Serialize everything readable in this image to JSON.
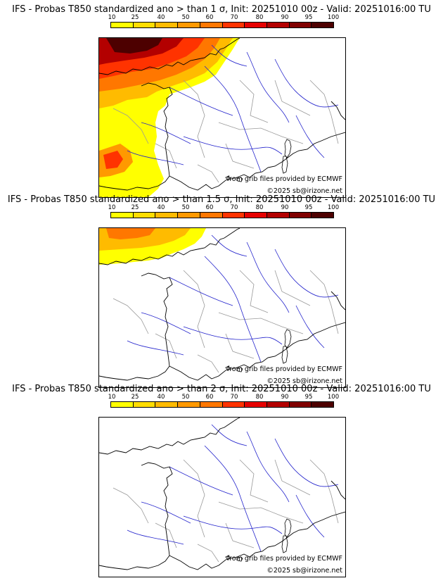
{
  "colorbar": {
    "labels": [
      "10",
      "25",
      "40",
      "50",
      "60",
      "70",
      "80",
      "90",
      "95",
      "100"
    ],
    "colors": [
      "#ffff00",
      "#ffdd00",
      "#ffbb00",
      "#ff9900",
      "#ff7700",
      "#ff3300",
      "#e60000",
      "#b30000",
      "#800000",
      "#4d0000"
    ]
  },
  "panels": [
    {
      "title": "IFS - Probas T850  standardized ano > than 1 σ, Init: 20251010 00z - Valid: 20251016:00 TU",
      "source_note": "from grib files provided by ECMWF",
      "copyright": "©2025 sb@irizone.net",
      "anomaly_threshold_sigma": 1
    },
    {
      "title": "IFS - Probas T850  standardized ano > than 1.5 σ, Init: 20251010 00z - Valid: 20251016:00 TU",
      "source_note": "from grib files provided by ECMWF",
      "copyright": "©2025 sb@irizone.net",
      "anomaly_threshold_sigma": 1.5
    },
    {
      "title": "IFS - Probas T850  standardized ano > than 2 σ, Init: 20251010 00z - Valid: 20251016:00 TU",
      "source_note": "from grib files provided by ECMWF",
      "copyright": "©2025 sb@irizone.net",
      "anomaly_threshold_sigma": 2
    }
  ]
}
